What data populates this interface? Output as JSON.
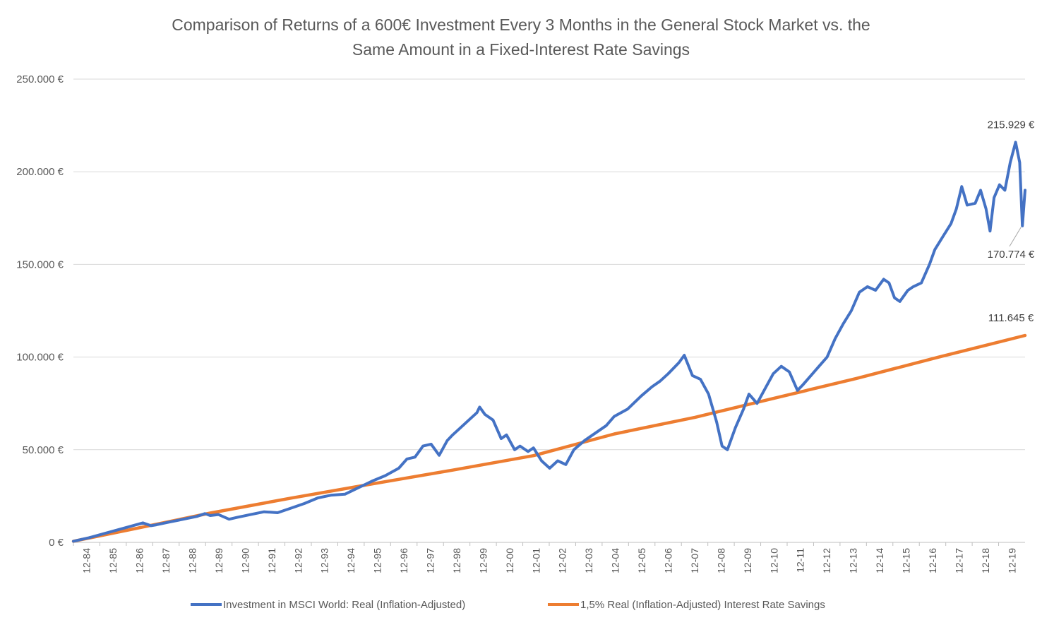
{
  "chart_data": {
    "type": "line",
    "title": [
      "Comparison of Returns of a 600€ Investment Every 3 Months in the General Stock Market vs. the",
      "Same Amount in a Fixed-Interest Rate Savings"
    ],
    "xlabel": "",
    "ylabel": "",
    "ylim": [
      0,
      250000
    ],
    "grid": true,
    "legend_position": "bottom",
    "y_ticks": [
      {
        "value": 0,
        "label": "0 €"
      },
      {
        "value": 50000,
        "label": "50.000 €"
      },
      {
        "value": 100000,
        "label": "100.000 €"
      },
      {
        "value": 150000,
        "label": "150.000 €"
      },
      {
        "value": 200000,
        "label": "200.000 €"
      },
      {
        "value": 250000,
        "label": "250.000 €"
      }
    ],
    "x_ticks": [
      "12-84",
      "12-85",
      "12-86",
      "12-87",
      "12-88",
      "12-89",
      "12-90",
      "12-91",
      "12-92",
      "12-93",
      "12-94",
      "12-95",
      "12-96",
      "12-97",
      "12-98",
      "12-99",
      "12-00",
      "12-01",
      "12-02",
      "12-03",
      "12-04",
      "12-05",
      "12-06",
      "12-07",
      "12-08",
      "12-09",
      "12-10",
      "12-11",
      "12-12",
      "12-13",
      "12-14",
      "12-15",
      "12-16",
      "12-17",
      "12-18",
      "12-19"
    ],
    "x_range": [
      1984.92,
      2020.25
    ],
    "series": [
      {
        "name": "Investment in MSCI World: Real (Inflation-Adjusted)",
        "color": "#4472c4",
        "points": [
          [
            1984.92,
            600
          ],
          [
            1985.5,
            2500
          ],
          [
            1986.0,
            4500
          ],
          [
            1986.5,
            6500
          ],
          [
            1987.0,
            8500
          ],
          [
            1987.5,
            10500
          ],
          [
            1987.8,
            9000
          ],
          [
            1988.0,
            9500
          ],
          [
            1988.5,
            11000
          ],
          [
            1989.0,
            12500
          ],
          [
            1989.5,
            14000
          ],
          [
            1989.8,
            15500
          ],
          [
            1990.0,
            14500
          ],
          [
            1990.3,
            15000
          ],
          [
            1990.7,
            12500
          ],
          [
            1991.0,
            13500
          ],
          [
            1991.5,
            15000
          ],
          [
            1992.0,
            16500
          ],
          [
            1992.5,
            16000
          ],
          [
            1993.0,
            18500
          ],
          [
            1993.5,
            21000
          ],
          [
            1994.0,
            24000
          ],
          [
            1994.5,
            25500
          ],
          [
            1995.0,
            26000
          ],
          [
            1995.5,
            29500
          ],
          [
            1996.0,
            33000
          ],
          [
            1996.5,
            36000
          ],
          [
            1997.0,
            40000
          ],
          [
            1997.3,
            45000
          ],
          [
            1997.6,
            46000
          ],
          [
            1997.9,
            52000
          ],
          [
            1998.2,
            53000
          ],
          [
            1998.5,
            47000
          ],
          [
            1998.8,
            55000
          ],
          [
            1999.0,
            58000
          ],
          [
            1999.3,
            62000
          ],
          [
            1999.6,
            66000
          ],
          [
            1999.9,
            70000
          ],
          [
            2000.0,
            73000
          ],
          [
            2000.2,
            69000
          ],
          [
            2000.5,
            66000
          ],
          [
            2000.8,
            56000
          ],
          [
            2001.0,
            58000
          ],
          [
            2001.3,
            50000
          ],
          [
            2001.5,
            52000
          ],
          [
            2001.8,
            49000
          ],
          [
            2002.0,
            51000
          ],
          [
            2002.3,
            44000
          ],
          [
            2002.6,
            40000
          ],
          [
            2002.9,
            44000
          ],
          [
            2003.2,
            42000
          ],
          [
            2003.5,
            50000
          ],
          [
            2003.9,
            55000
          ],
          [
            2004.3,
            59000
          ],
          [
            2004.7,
            63000
          ],
          [
            2005.0,
            68000
          ],
          [
            2005.5,
            72000
          ],
          [
            2006.0,
            79000
          ],
          [
            2006.4,
            84000
          ],
          [
            2006.7,
            87000
          ],
          [
            2007.0,
            91000
          ],
          [
            2007.4,
            97000
          ],
          [
            2007.6,
            101000
          ],
          [
            2007.9,
            90000
          ],
          [
            2008.2,
            88000
          ],
          [
            2008.5,
            80000
          ],
          [
            2008.8,
            65000
          ],
          [
            2009.0,
            52000
          ],
          [
            2009.2,
            50000
          ],
          [
            2009.5,
            62000
          ],
          [
            2009.8,
            72000
          ],
          [
            2010.0,
            80000
          ],
          [
            2010.3,
            75000
          ],
          [
            2010.6,
            83000
          ],
          [
            2010.9,
            91000
          ],
          [
            2011.2,
            95000
          ],
          [
            2011.5,
            92000
          ],
          [
            2011.8,
            82000
          ],
          [
            2012.0,
            85000
          ],
          [
            2012.3,
            90000
          ],
          [
            2012.6,
            95000
          ],
          [
            2012.9,
            100000
          ],
          [
            2013.2,
            110000
          ],
          [
            2013.5,
            118000
          ],
          [
            2013.8,
            125000
          ],
          [
            2014.1,
            135000
          ],
          [
            2014.4,
            138000
          ],
          [
            2014.7,
            136000
          ],
          [
            2015.0,
            142000
          ],
          [
            2015.2,
            140000
          ],
          [
            2015.4,
            132000
          ],
          [
            2015.6,
            130000
          ],
          [
            2015.9,
            136000
          ],
          [
            2016.1,
            138000
          ],
          [
            2016.4,
            140000
          ],
          [
            2016.7,
            150000
          ],
          [
            2016.9,
            158000
          ],
          [
            2017.2,
            165000
          ],
          [
            2017.5,
            172000
          ],
          [
            2017.7,
            180000
          ],
          [
            2017.9,
            192000
          ],
          [
            2018.1,
            182000
          ],
          [
            2018.4,
            183000
          ],
          [
            2018.6,
            190000
          ],
          [
            2018.8,
            180000
          ],
          [
            2018.95,
            168000
          ],
          [
            2019.1,
            186000
          ],
          [
            2019.3,
            193000
          ],
          [
            2019.5,
            190000
          ],
          [
            2019.7,
            205000
          ],
          [
            2019.9,
            215929
          ],
          [
            2020.05,
            205000
          ],
          [
            2020.15,
            170774
          ],
          [
            2020.25,
            190000
          ]
        ]
      },
      {
        "name": "1,5% Real (Inflation-Adjusted) Interest Rate Savings",
        "color": "#ed7d31",
        "points": [
          [
            1984.92,
            600
          ],
          [
            1987.0,
            6800
          ],
          [
            1990.0,
            15800
          ],
          [
            1993.0,
            23900
          ],
          [
            1996.0,
            31500
          ],
          [
            1999.0,
            39000
          ],
          [
            2002.0,
            46800
          ],
          [
            2005.0,
            58500
          ],
          [
            2008.0,
            67500
          ],
          [
            2011.0,
            78000
          ],
          [
            2014.0,
            88500
          ],
          [
            2017.0,
            99800
          ],
          [
            2020.25,
            111645
          ]
        ]
      }
    ],
    "annotations": [
      {
        "label": "215.929 €",
        "series": 0,
        "x": 2019.9,
        "y": 215929
      },
      {
        "label": "170.774 €",
        "series": 0,
        "x": 2020.15,
        "y": 170774
      },
      {
        "label": "111.645 €",
        "series": 1,
        "x": 2020.25,
        "y": 111645
      }
    ]
  }
}
